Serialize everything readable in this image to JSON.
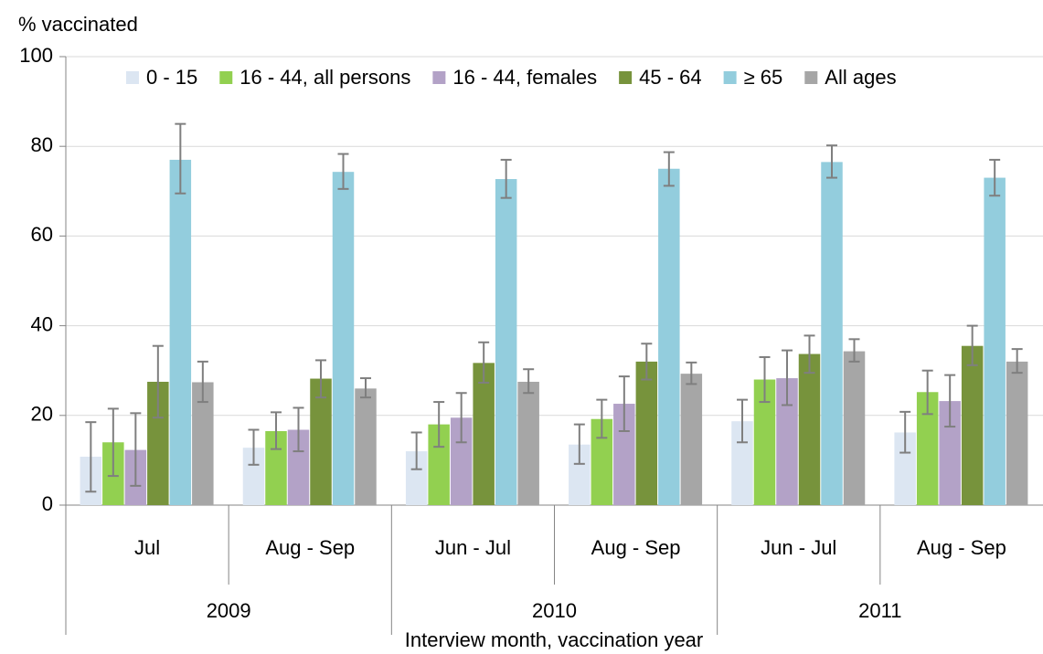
{
  "chart_data": {
    "type": "bar",
    "y_label": "% vaccinated",
    "x_label": "Interview month, vaccination year",
    "categories": [
      "Jul",
      "Aug - Sep",
      "Jun - Jul",
      "Aug - Sep",
      "Jun - Jul",
      "Aug - Sep"
    ],
    "years": [
      "2009",
      "2010",
      "2011"
    ],
    "ylim": [
      0,
      100
    ],
    "yticks": [
      0,
      20,
      40,
      60,
      80,
      100
    ],
    "grid": true,
    "series": [
      {
        "name": "0 - 15",
        "color": "#dce6f2",
        "values": [
          10.8,
          12.8,
          12,
          13.5,
          18.7,
          16.2
        ],
        "err_low": [
          3,
          9,
          8,
          9.2,
          14,
          11.7
        ],
        "err_high": [
          18.5,
          16.8,
          16.2,
          18,
          23.5,
          20.8
        ]
      },
      {
        "name": "16 - 44, all persons",
        "color": "#92d050",
        "values": [
          14,
          16.5,
          18,
          19.2,
          28,
          25.2
        ],
        "err_low": [
          6.5,
          12.5,
          13,
          15,
          23,
          20.3
        ],
        "err_high": [
          21.5,
          20.7,
          23,
          23.5,
          33,
          30
        ]
      },
      {
        "name": "16 - 44, females",
        "color": "#b3a2c7",
        "values": [
          12.3,
          16.8,
          19.5,
          22.6,
          28.3,
          23.2
        ],
        "err_low": [
          4.3,
          12,
          14,
          16.5,
          22.3,
          17.5
        ],
        "err_high": [
          20.5,
          21.7,
          25,
          28.7,
          34.5,
          29
        ]
      },
      {
        "name": "45 - 64",
        "color": "#77933c",
        "values": [
          27.5,
          28.2,
          31.7,
          32,
          33.7,
          35.5
        ],
        "err_low": [
          19.5,
          24,
          27.3,
          28,
          29.5,
          31.2
        ],
        "err_high": [
          35.5,
          32.3,
          36.3,
          36,
          37.8,
          40
        ]
      },
      {
        "name": "≥ 65",
        "color": "#93cddd",
        "values": [
          77,
          74.3,
          72.7,
          75,
          76.5,
          73
        ],
        "err_low": [
          69.5,
          70.5,
          68.5,
          71.2,
          73,
          69
        ],
        "err_high": [
          85,
          78.3,
          77,
          78.7,
          80.2,
          77
        ]
      },
      {
        "name": "All ages",
        "color": "#a6a6a6",
        "values": [
          27.4,
          26,
          27.5,
          29.3,
          34.3,
          32
        ],
        "err_low": [
          23,
          24,
          25,
          27,
          32,
          29.5
        ],
        "err_high": [
          32,
          28.3,
          30.3,
          31.8,
          37,
          34.8
        ]
      }
    ]
  }
}
